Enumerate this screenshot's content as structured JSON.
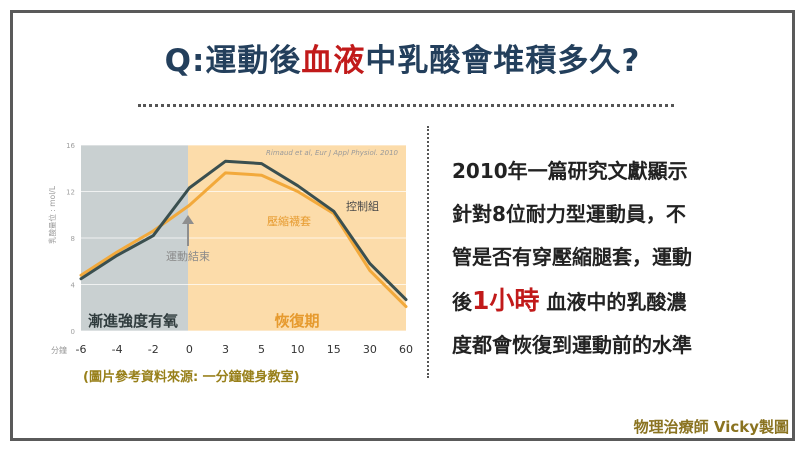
{
  "title": {
    "prefix": "Q:運動後",
    "highlight": "血液",
    "suffix": "中乳酸會堆積多久?"
  },
  "chart_data": {
    "type": "line",
    "x": [
      "-6",
      "-4",
      "-2",
      "0",
      "3",
      "5",
      "10",
      "15",
      "30",
      "60"
    ],
    "ylim": [
      0,
      16
    ],
    "yticks": [
      "0",
      "4",
      "8",
      "12",
      "16"
    ],
    "ylabel": "乳酸量位 : mol/L",
    "xlabel": "分鐘",
    "citation": "Rimaud et al, Eur J Appl Physiol. 2010",
    "series": [
      {
        "name": "控制組",
        "color": "#3a4f4f",
        "values": [
          4.5,
          6.5,
          8.2,
          12.3,
          14.6,
          14.4,
          12.5,
          10.3,
          5.8,
          2.7
        ]
      },
      {
        "name": "壓縮襪套",
        "color": "#f2a93b",
        "values": [
          4.8,
          6.8,
          8.6,
          10.8,
          13.6,
          13.4,
          12.0,
          10.1,
          5.2,
          2.1
        ]
      }
    ],
    "regions": [
      {
        "label": "漸進強度有氧",
        "color": "#c9d0d1"
      },
      {
        "label": "恢復期",
        "color": "#fcdcaa"
      }
    ],
    "annotation": "運動結束"
  },
  "caption": "(圖片參考資料來源: 一分鐘健身教室)",
  "paragraph": {
    "line1": "2010年一篇研究文獻顯示",
    "line2": "針對8位耐力型運動員，不",
    "line3": "管是否有穿壓縮腿套，運動",
    "line4_pre": "後",
    "line4_hl": "1小時",
    "line4_post": " 血液中的乳酸濃",
    "line5": "度都會恢復到運動前的水準"
  },
  "credit": "物理治療師 Vicky製圖"
}
